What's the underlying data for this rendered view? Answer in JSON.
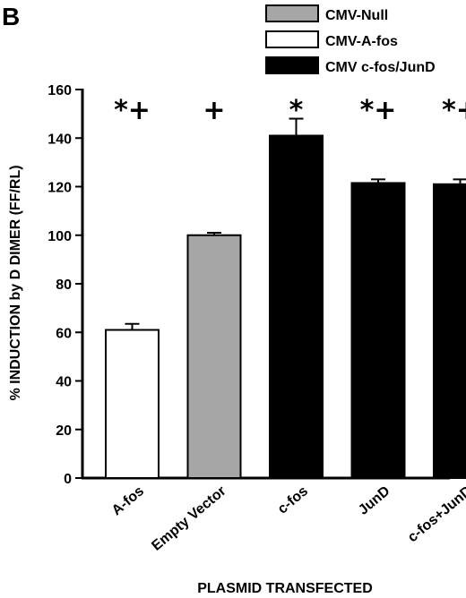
{
  "panel_label": "B",
  "chart_data": {
    "type": "bar",
    "categories": [
      "A-fos",
      "Empty Vector",
      "c-fos",
      "JunD",
      "c-fos+JunD"
    ],
    "values": [
      61,
      100,
      141,
      121.5,
      121
    ],
    "errors": [
      2.5,
      1,
      7,
      1.5,
      2
    ],
    "bar_groups": [
      "CMV-A-fos",
      "CMV-Null",
      "CMV c-fos/JunD",
      "CMV c-fos/JunD",
      "CMV c-fos/JunD"
    ],
    "significance": [
      "*+",
      "+",
      "*",
      "*+",
      "*+"
    ],
    "xlabel": "PLASMID TRANSFECTED",
    "ylabel": "% INDUCTION by D DIMER (FF/RL)",
    "ylim": [
      0,
      160
    ],
    "yticks": [
      0,
      20,
      40,
      60,
      80,
      100,
      120,
      140,
      160
    ],
    "grid": false,
    "legend": {
      "position": "top-right",
      "entries": [
        {
          "name": "CMV-Null",
          "color": "#a6a6a6"
        },
        {
          "name": "CMV-A-fos",
          "color": "#ffffff"
        },
        {
          "name": "CMV c-fos/JunD",
          "color": "#000000"
        }
      ]
    }
  }
}
